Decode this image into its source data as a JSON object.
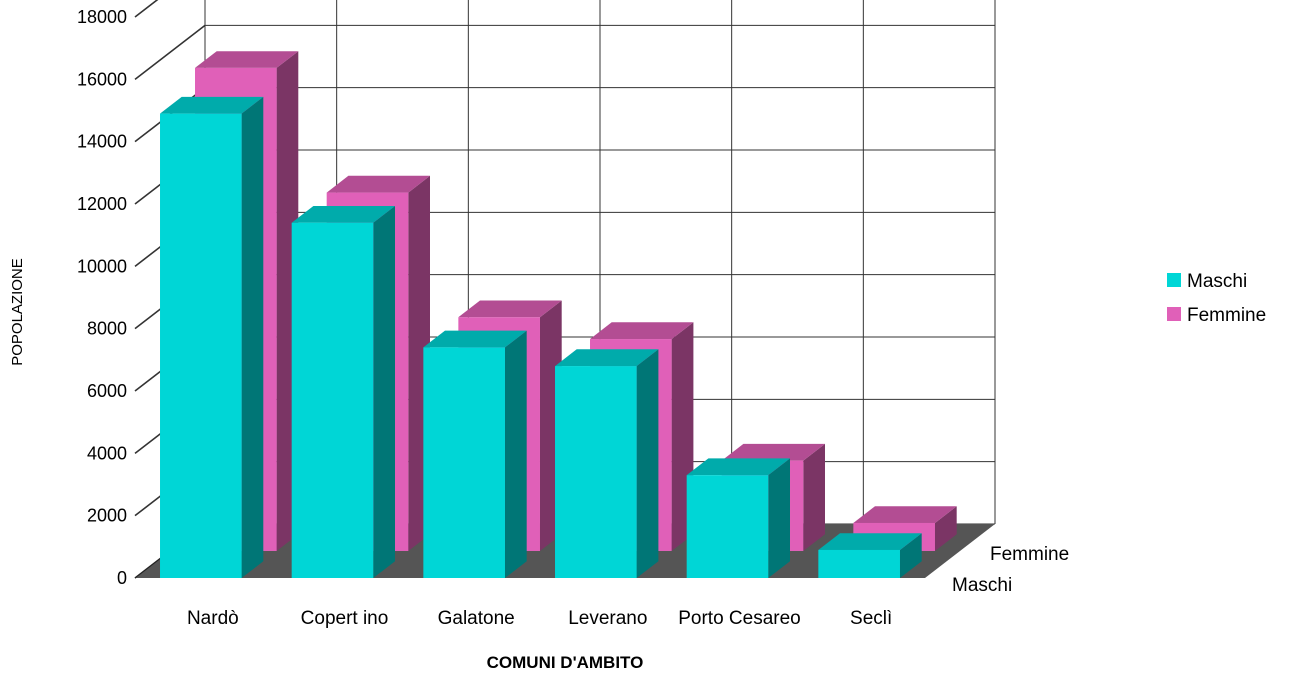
{
  "chart_data": {
    "type": "bar",
    "three_d": true,
    "categories": [
      "Nardò",
      "Copert ino",
      "Galatone",
      "Leverano",
      "Porto Cesareo",
      "Seclì"
    ],
    "series": [
      {
        "name": "Maschi",
        "color": "#00d6d6",
        "values": [
          14900,
          11400,
          7400,
          6800,
          3300,
          900
        ]
      },
      {
        "name": "Femmine",
        "color": "#e060b8",
        "values": [
          15500,
          11500,
          7500,
          6800,
          2900,
          900
        ]
      }
    ],
    "depth_labels": [
      "Femmine",
      "Maschi"
    ],
    "xlabel": "COMUNI D'AMBITO",
    "ylabel": "POPOLAZIONE",
    "ylim": [
      0,
      18000
    ],
    "yticks": [
      0,
      2000,
      4000,
      6000,
      8000,
      10000,
      12000,
      14000,
      16000,
      18000
    ],
    "grid": true,
    "legend_position": "right"
  }
}
